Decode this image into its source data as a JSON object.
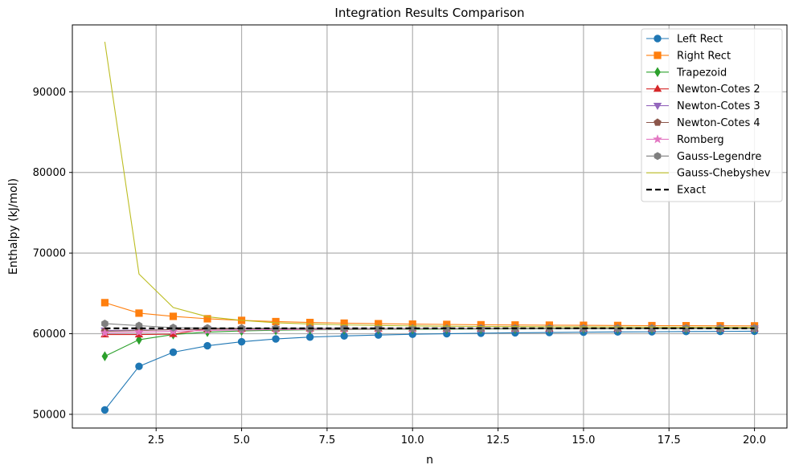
{
  "chart_data": {
    "type": "line",
    "title": "Integration Results Comparison",
    "xlabel": "n",
    "ylabel": "Enthalpy (kJ/mol)",
    "xlim": [
      0.05,
      20.95
    ],
    "ylim": [
      48300,
      98300
    ],
    "xticks": [
      2.5,
      5.0,
      7.5,
      10.0,
      12.5,
      15.0,
      17.5,
      20.0
    ],
    "xtick_labels": [
      "2.5",
      "5.0",
      "7.5",
      "10.0",
      "12.5",
      "15.0",
      "17.5",
      "20.0"
    ],
    "yticks": [
      50000,
      60000,
      70000,
      80000,
      90000
    ],
    "ytick_labels": [
      "50000",
      "60000",
      "70000",
      "80000",
      "90000"
    ],
    "grid": true,
    "legend_position": "top-right",
    "x": [
      1,
      2,
      3,
      4,
      5,
      6,
      7,
      8,
      9,
      10,
      11,
      12,
      13,
      14,
      15,
      16,
      17,
      18,
      19,
      20
    ],
    "series": [
      {
        "name": "Left Rect",
        "color": "#1f77b4",
        "marker": "circle",
        "linestyle": "solid",
        "values": [
          50550,
          55950,
          57700,
          58500,
          59000,
          59350,
          59580,
          59720,
          59840,
          59930,
          60000,
          60060,
          60110,
          60150,
          60190,
          60220,
          60240,
          60270,
          60290,
          60310
        ]
      },
      {
        "name": "Right Rect",
        "color": "#ff7f0e",
        "marker": "square",
        "linestyle": "solid",
        "values": [
          63850,
          62550,
          62150,
          61850,
          61650,
          61500,
          61390,
          61310,
          61240,
          61190,
          61150,
          61110,
          61080,
          61060,
          61040,
          61020,
          61000,
          60990,
          60980,
          60970
        ]
      },
      {
        "name": "Trapezoid",
        "color": "#2ca02c",
        "marker": "thin-diamond",
        "linestyle": "solid",
        "values": [
          57200,
          59250,
          59900,
          60200,
          60350,
          60430,
          60480,
          60510,
          60540,
          60560,
          60570,
          60580,
          60590,
          60600,
          60610,
          60615,
          60620,
          60625,
          60630,
          60635
        ]
      },
      {
        "name": "Newton-Cotes 2",
        "color": "#d62728",
        "marker": "triangle-up",
        "linestyle": "solid",
        "values": [
          59900,
          59900,
          59950,
          60600,
          60600,
          60620,
          60630,
          60635,
          60640,
          60645,
          60648,
          60650,
          60652,
          60654,
          60655,
          60656,
          60657,
          60658,
          60659,
          60660
        ]
      },
      {
        "name": "Newton-Cotes 3",
        "color": "#9467bd",
        "marker": "triangle-down",
        "linestyle": "solid",
        "values": [
          60400,
          60450,
          60500,
          60550,
          60580,
          60600,
          60610,
          60620,
          60630,
          60635,
          60640,
          60645,
          60648,
          60650,
          60652,
          60654,
          60656,
          60658,
          60659,
          60660
        ]
      },
      {
        "name": "Newton-Cotes 4",
        "color": "#8c564b",
        "marker": "pentagon",
        "linestyle": "solid",
        "values": [
          60300,
          60400,
          60500,
          60560,
          60600,
          60620,
          60630,
          60640,
          60645,
          60650,
          60652,
          60654,
          60656,
          60657,
          60658,
          60659,
          60660,
          60660,
          60660,
          60660
        ]
      },
      {
        "name": "Romberg",
        "color": "#e377c2",
        "marker": "star",
        "linestyle": "solid",
        "values": [
          60100,
          60200,
          60300,
          60400,
          60450,
          60500,
          60530,
          60560,
          60580,
          60600,
          60610,
          60620,
          60630,
          60640,
          60645,
          60650,
          60655,
          60658,
          60660,
          60660
        ]
      },
      {
        "name": "Gauss-Legendre",
        "color": "#7f7f7f",
        "marker": "hexagon",
        "linestyle": "solid",
        "values": [
          61250,
          61000,
          60750,
          60700,
          60680,
          60670,
          60665,
          60662,
          60660,
          60660,
          60660,
          60660,
          60660,
          60660,
          60660,
          60660,
          60660,
          60660,
          60660,
          60660
        ]
      },
      {
        "name": "Gauss-Chebyshev",
        "color": "#bcbd22",
        "marker": "none",
        "linestyle": "solid",
        "values": [
          96200,
          67400,
          63250,
          62100,
          61650,
          61350,
          61200,
          61100,
          61020,
          60970,
          60930,
          60900,
          60880,
          60860,
          60840,
          60830,
          60820,
          60810,
          60800,
          60790
        ]
      },
      {
        "name": "Exact",
        "color": "#000000",
        "marker": "none",
        "linestyle": "dashed",
        "values": [
          60660,
          60660,
          60660,
          60660,
          60660,
          60660,
          60660,
          60660,
          60660,
          60660,
          60660,
          60660,
          60660,
          60660,
          60660,
          60660,
          60660,
          60660,
          60660,
          60660
        ]
      }
    ]
  }
}
